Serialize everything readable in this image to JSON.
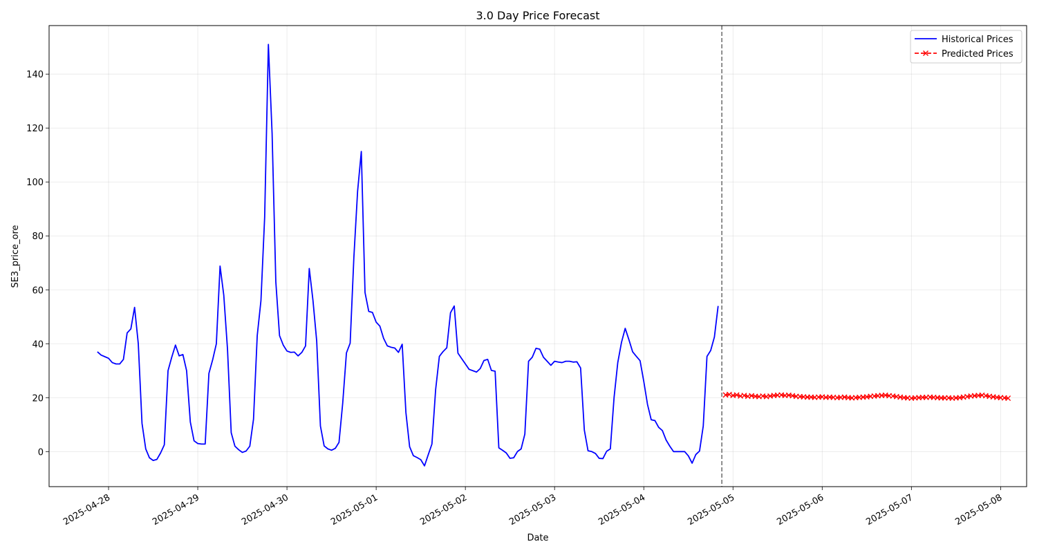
{
  "chart_data": {
    "type": "line",
    "title": "3.0 Day Price Forecast",
    "xlabel": "Date",
    "ylabel": "SE3_price_ore",
    "x_axis": {
      "type": "date",
      "range": [
        "2025-04-27 08:00",
        "2025-05-08 07:00"
      ],
      "ticks": [
        "2025-04-28",
        "2025-04-29",
        "2025-04-30",
        "2025-05-01",
        "2025-05-02",
        "2025-05-03",
        "2025-05-04",
        "2025-05-05",
        "2025-05-06",
        "2025-05-07",
        "2025-05-08"
      ]
    },
    "y_axis": {
      "range": [
        -13,
        158
      ],
      "ticks": [
        0,
        20,
        40,
        60,
        80,
        100,
        120,
        140
      ]
    },
    "grid": true,
    "legend": {
      "placement": "top-right",
      "entries": [
        "Historical Prices",
        "Predicted Prices"
      ]
    },
    "forecast_start_marker": "2025-05-04 21:00",
    "series": [
      {
        "name": "Historical Prices",
        "color": "#0000ff",
        "style": "solid",
        "start": "2025-04-27 21:00",
        "interval_hours": 1,
        "values": [
          37.0,
          35.8,
          35.2,
          34.6,
          33.0,
          32.5,
          32.5,
          34.2,
          44.0,
          45.5,
          53.5,
          40.0,
          10.5,
          1.0,
          -2.3,
          -3.3,
          -2.9,
          -0.5,
          2.5,
          30.0,
          35.0,
          39.5,
          35.5,
          36.0,
          30.0,
          11.0,
          4.0,
          3.0,
          2.8,
          2.8,
          29.0,
          34.0,
          40.0,
          68.8,
          58.0,
          38.0,
          7.0,
          2.0,
          0.7,
          -0.3,
          0.2,
          2.0,
          12.0,
          43.0,
          56.0,
          87.0,
          151.0,
          118.0,
          63.0,
          43.0,
          39.5,
          37.3,
          36.8,
          36.9,
          35.5,
          36.8,
          39.2,
          67.9,
          56.0,
          41.0,
          9.5,
          2.1,
          1.0,
          0.5,
          1.2,
          3.4,
          18.0,
          36.6,
          40.2,
          72.0,
          96.5,
          111.3,
          59.0,
          52.0,
          51.6,
          48.0,
          46.5,
          42.0,
          39.2,
          38.7,
          38.4,
          36.8,
          39.8,
          14.5,
          1.8,
          -1.5,
          -2.2,
          -3.0,
          -5.3,
          -1.2,
          2.8,
          23.0,
          35.3,
          37.1,
          38.5,
          51.5,
          54.0,
          36.5,
          34.5,
          32.5,
          30.5,
          30.0,
          29.5,
          30.8,
          33.8,
          34.2,
          30.1,
          29.8,
          1.4,
          0.5,
          -0.5,
          -2.5,
          -2.3,
          0.0,
          1.0,
          6.5,
          33.5,
          35.0,
          38.3,
          38.0,
          35.0,
          33.5,
          32.0,
          33.5,
          33.2,
          33.0,
          33.5,
          33.5,
          33.2,
          33.3,
          31.0,
          8.0,
          0.3,
          0.0,
          -0.7,
          -2.5,
          -2.6,
          0.1,
          1.0,
          20.0,
          33.0,
          40.5,
          45.7,
          41.5,
          37.0,
          35.3,
          33.7,
          26.0,
          17.5,
          11.8,
          11.5,
          9.0,
          7.8,
          4.3,
          2.0,
          0.0,
          0.0,
          0.0,
          0.0,
          -1.6,
          -4.3,
          -1.1,
          0.2,
          9.5,
          35.3,
          37.5,
          42.5,
          54.0
        ]
      },
      {
        "name": "Predicted Prices",
        "color": "#ff0000",
        "style": "dashed",
        "marker": "x",
        "start": "2025-05-04 22:00",
        "interval_hours": 1,
        "values": [
          21.0,
          21.2,
          20.8,
          21.0,
          20.6,
          20.8,
          20.5,
          20.7,
          20.5,
          20.4,
          20.6,
          20.4,
          20.6,
          20.8,
          20.9,
          21.0,
          20.8,
          20.9,
          20.7,
          20.5,
          20.4,
          20.3,
          20.2,
          20.2,
          20.1,
          20.2,
          20.3,
          20.1,
          20.2,
          20.1,
          20.0,
          20.1,
          20.2,
          20.0,
          19.9,
          20.0,
          20.1,
          20.2,
          20.3,
          20.5,
          20.6,
          20.7,
          20.8,
          20.9,
          20.7,
          20.6,
          20.4,
          20.2,
          20.0,
          19.9,
          19.8,
          19.9,
          20.0,
          20.1,
          20.1,
          20.2,
          20.1,
          20.0,
          19.9,
          19.9,
          19.9,
          19.8,
          19.9,
          20.0,
          20.2,
          20.4,
          20.6,
          20.7,
          20.8,
          20.9,
          20.7,
          20.5,
          20.3,
          20.1,
          20.0,
          19.9,
          19.8
        ]
      }
    ]
  }
}
